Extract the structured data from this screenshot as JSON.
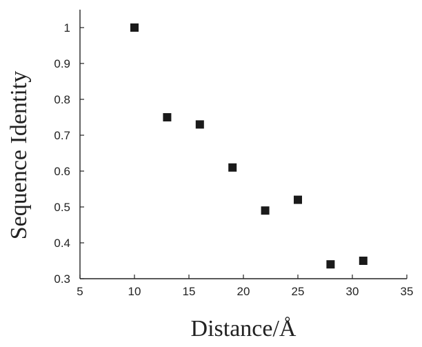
{
  "chart_data": {
    "type": "scatter",
    "title": "",
    "xlabel": "Distance/Å",
    "ylabel": "Sequence Identity",
    "xlim": [
      5,
      35
    ],
    "ylim": [
      0.3,
      1.05
    ],
    "xticks": [
      5,
      10,
      15,
      20,
      25,
      30,
      35
    ],
    "yticks": [
      0.3,
      0.4,
      0.5,
      0.6,
      0.7,
      0.8,
      0.9,
      1
    ],
    "xtick_labels": [
      "5",
      "10",
      "15",
      "20",
      "25",
      "30",
      "35"
    ],
    "ytick_labels": [
      "0.3",
      "0.4",
      "0.5",
      "0.6",
      "0.7",
      "0.8",
      "0.9",
      "1"
    ],
    "grid": false,
    "legend": "none",
    "marker": "square",
    "marker_color": "#1a1a1a",
    "series": [
      {
        "x": [
          10,
          13,
          16,
          19,
          22,
          25,
          28,
          31
        ],
        "y": [
          1.0,
          0.75,
          0.73,
          0.61,
          0.49,
          0.52,
          0.34,
          0.35
        ]
      }
    ]
  }
}
